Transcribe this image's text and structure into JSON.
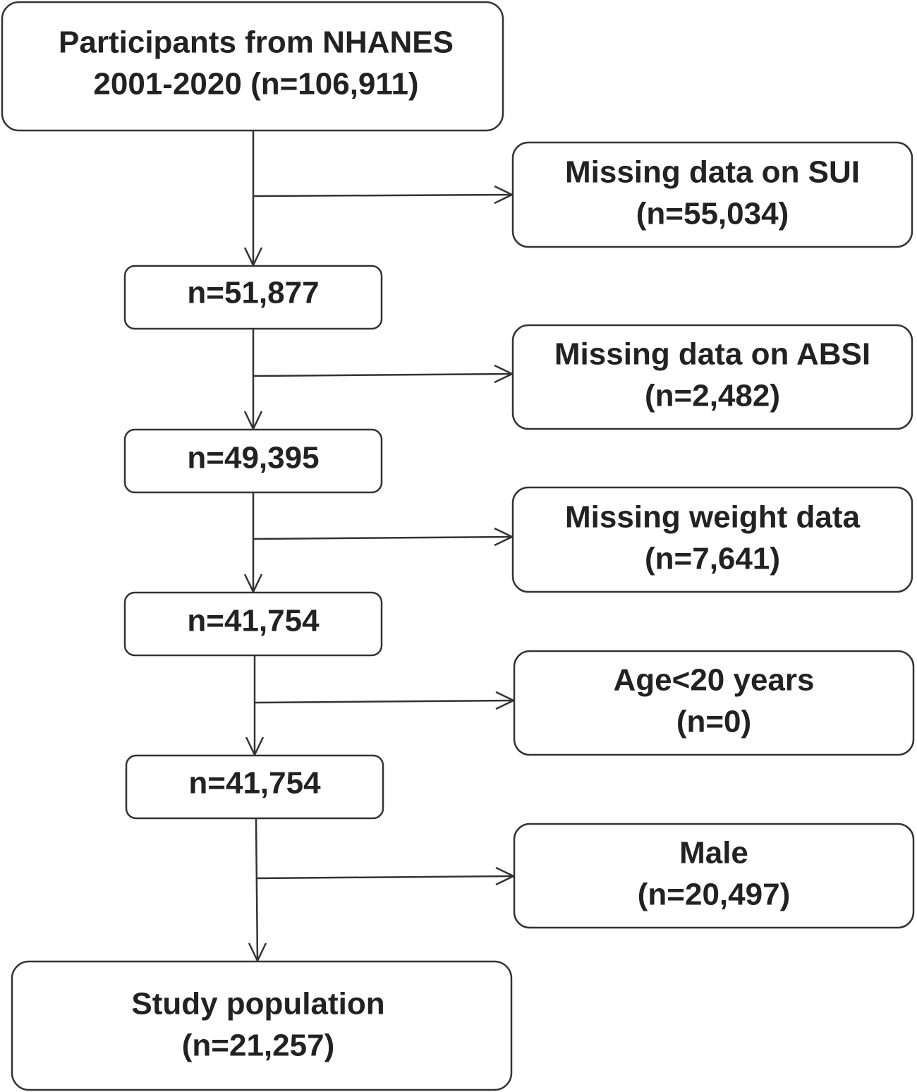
{
  "nodes": [
    {
      "lines": [
        "Participants from NHANES",
        "2001-2020 (n=106,911)"
      ]
    },
    {
      "lines": [
        "n=51,877"
      ]
    },
    {
      "lines": [
        "n=49,395"
      ]
    },
    {
      "lines": [
        "n=41,754"
      ]
    },
    {
      "lines": [
        "n=41,754"
      ]
    },
    {
      "lines": [
        "Study population",
        "(n=21,257)"
      ]
    }
  ],
  "exclusions": [
    {
      "lines": [
        "Missing data on SUI",
        "(n=55,034)"
      ]
    },
    {
      "lines": [
        "Missing data on ABSI",
        "(n=2,482)"
      ]
    },
    {
      "lines": [
        "Missing weight data",
        "(n=7,641)"
      ]
    },
    {
      "lines": [
        "Age<20 years",
        "(n=0)"
      ]
    },
    {
      "lines": [
        "Male",
        "(n=20,497)"
      ]
    }
  ]
}
